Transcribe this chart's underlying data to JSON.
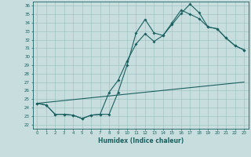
{
  "xlabel": "Humidex (Indice chaleur)",
  "bg_color": "#c8dede",
  "grid_color": "#a0c4c4",
  "line_color": "#1a6060",
  "xlim": [
    -0.5,
    23.5
  ],
  "ylim": [
    21.5,
    36.5
  ],
  "yticks": [
    22,
    23,
    24,
    25,
    26,
    27,
    28,
    29,
    30,
    31,
    32,
    33,
    34,
    35,
    36
  ],
  "xticks": [
    0,
    1,
    2,
    3,
    4,
    5,
    6,
    7,
    8,
    9,
    10,
    11,
    12,
    13,
    14,
    15,
    16,
    17,
    18,
    19,
    20,
    21,
    22,
    23
  ],
  "line1_x": [
    0,
    1,
    2,
    3,
    4,
    5,
    6,
    7,
    8,
    9,
    10,
    11,
    12,
    13,
    14,
    15,
    16,
    17,
    18,
    19,
    20,
    21,
    22,
    23
  ],
  "line1_y": [
    24.5,
    24.3,
    23.2,
    23.2,
    23.1,
    22.7,
    23.1,
    23.2,
    23.2,
    25.8,
    29.0,
    32.8,
    34.4,
    32.8,
    32.5,
    33.8,
    35.1,
    36.2,
    35.2,
    33.5,
    33.3,
    32.2,
    31.3,
    30.8
  ],
  "line2_x": [
    0,
    1,
    2,
    3,
    4,
    5,
    6,
    7,
    8,
    9,
    10,
    11,
    12,
    13,
    14,
    15,
    16,
    17,
    18,
    19,
    20,
    21,
    22,
    23
  ],
  "line2_y": [
    24.5,
    24.3,
    23.2,
    23.2,
    23.1,
    22.7,
    23.1,
    23.2,
    25.8,
    27.2,
    29.5,
    31.5,
    32.7,
    31.8,
    32.5,
    34.0,
    35.5,
    35.0,
    34.5,
    33.5,
    33.3,
    32.2,
    31.3,
    30.8
  ],
  "line3_x": [
    0,
    23
  ],
  "line3_y": [
    24.5,
    27.0
  ]
}
